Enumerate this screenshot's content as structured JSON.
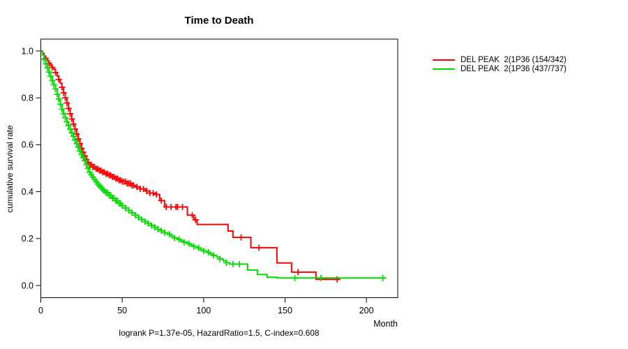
{
  "title": "Time to Death",
  "axes": {
    "ylabel": "cumulative survival rate",
    "xlabel": "Month"
  },
  "footer": "logrank P=1.37e-05, HazardRatio=1.5, C-index=0.608",
  "legend": {
    "position": "right",
    "items": [
      {
        "label": "DEL PEAK  2(1P36 (154/342)",
        "color": "#FF0000"
      },
      {
        "label": "DEL PEAK  2(1P36 (437/737)",
        "color": "#00DC00"
      }
    ]
  },
  "chart_data": {
    "type": "line",
    "subtype": "kaplan-meier-step-survival",
    "title": "Time to Death",
    "xlabel": "Month",
    "ylabel": "cumulative survival rate",
    "annotation": "logrank P=1.37e-05, HazardRatio=1.5, C-index=0.608",
    "x_ticks": [
      0,
      50,
      100,
      150,
      200
    ],
    "y_ticks": [
      0.0,
      0.2,
      0.4,
      0.6,
      0.8,
      1.0
    ],
    "xlim": [
      0,
      219
    ],
    "ylim": [
      0,
      1.04
    ],
    "grid": false,
    "legend_position": "right",
    "series": [
      {
        "name": "DEL PEAK  2(1P36 (154/342)",
        "color": "#FF0000",
        "end_t": 184,
        "steps": [
          [
            0,
            1.0
          ],
          [
            1,
            0.99
          ],
          [
            2,
            0.978
          ],
          [
            3,
            0.968
          ],
          [
            4,
            0.958
          ],
          [
            5,
            0.948
          ],
          [
            6,
            0.938
          ],
          [
            7,
            0.93
          ],
          [
            8,
            0.922
          ],
          [
            9,
            0.908
          ],
          [
            10,
            0.893
          ],
          [
            11,
            0.878
          ],
          [
            12,
            0.862
          ],
          [
            13,
            0.845
          ],
          [
            14,
            0.822
          ],
          [
            15,
            0.8
          ],
          [
            16,
            0.778
          ],
          [
            17,
            0.755
          ],
          [
            18,
            0.732
          ],
          [
            19,
            0.71
          ],
          [
            20,
            0.688
          ],
          [
            21,
            0.667
          ],
          [
            22,
            0.646
          ],
          [
            23,
            0.625
          ],
          [
            24,
            0.605
          ],
          [
            25,
            0.585
          ],
          [
            26,
            0.568
          ],
          [
            27,
            0.552
          ],
          [
            28,
            0.537
          ],
          [
            29,
            0.523
          ],
          [
            30,
            0.515
          ],
          [
            32,
            0.505
          ],
          [
            34,
            0.497
          ],
          [
            36,
            0.49
          ],
          [
            38,
            0.483
          ],
          [
            40,
            0.476
          ],
          [
            42,
            0.47
          ],
          [
            44,
            0.463
          ],
          [
            46,
            0.456
          ],
          [
            48,
            0.449
          ],
          [
            50,
            0.443
          ],
          [
            53,
            0.435
          ],
          [
            56,
            0.427
          ],
          [
            58,
            0.42
          ],
          [
            61,
            0.412
          ],
          [
            64,
            0.403
          ],
          [
            67,
            0.394
          ],
          [
            70,
            0.388
          ],
          [
            73,
            0.362
          ],
          [
            76,
            0.335
          ],
          [
            90,
            0.3
          ],
          [
            94,
            0.28
          ],
          [
            96,
            0.26
          ],
          [
            115,
            0.232
          ],
          [
            118,
            0.205
          ],
          [
            129,
            0.161
          ],
          [
            145,
            0.096
          ],
          [
            154,
            0.057
          ],
          [
            169,
            0.026
          ]
        ],
        "censor_times": [
          3,
          5,
          7,
          9,
          11,
          13,
          14,
          15,
          16,
          17,
          18,
          19,
          20,
          21,
          22,
          23,
          24,
          25,
          26,
          27,
          28,
          29,
          30,
          31,
          32,
          33,
          34,
          35,
          36,
          37,
          38,
          39,
          40,
          41,
          42,
          43,
          44,
          45,
          46,
          47,
          48,
          49,
          50,
          51,
          52,
          53,
          54,
          55,
          56,
          57,
          59,
          61,
          63,
          65,
          67,
          69,
          71,
          74,
          77,
          80,
          83,
          84,
          87,
          93,
          95,
          123,
          134,
          158,
          182
        ]
      },
      {
        "name": "DEL PEAK  2(1P36 (437/737)",
        "color": "#00DC00",
        "end_t": 212,
        "steps": [
          [
            0,
            1.0
          ],
          [
            1,
            0.983
          ],
          [
            2,
            0.964
          ],
          [
            3,
            0.945
          ],
          [
            4,
            0.928
          ],
          [
            5,
            0.91
          ],
          [
            6,
            0.892
          ],
          [
            7,
            0.874
          ],
          [
            8,
            0.856
          ],
          [
            9,
            0.838
          ],
          [
            10,
            0.815
          ],
          [
            11,
            0.795
          ],
          [
            12,
            0.773
          ],
          [
            13,
            0.752
          ],
          [
            14,
            0.733
          ],
          [
            15,
            0.715
          ],
          [
            16,
            0.698
          ],
          [
            17,
            0.682
          ],
          [
            18,
            0.666
          ],
          [
            19,
            0.651
          ],
          [
            20,
            0.636
          ],
          [
            21,
            0.62
          ],
          [
            22,
            0.605
          ],
          [
            23,
            0.59
          ],
          [
            24,
            0.573
          ],
          [
            25,
            0.558
          ],
          [
            26,
            0.545
          ],
          [
            27,
            0.532
          ],
          [
            28,
            0.515
          ],
          [
            29,
            0.5
          ],
          [
            30,
            0.483
          ],
          [
            31,
            0.472
          ],
          [
            32,
            0.462
          ],
          [
            33,
            0.452
          ],
          [
            34,
            0.442
          ],
          [
            35,
            0.433
          ],
          [
            36,
            0.425
          ],
          [
            37,
            0.418
          ],
          [
            38,
            0.41
          ],
          [
            39,
            0.403
          ],
          [
            40,
            0.396
          ],
          [
            42,
            0.384
          ],
          [
            44,
            0.372
          ],
          [
            46,
            0.361
          ],
          [
            48,
            0.35
          ],
          [
            50,
            0.34
          ],
          [
            52,
            0.33
          ],
          [
            54,
            0.32
          ],
          [
            56,
            0.31
          ],
          [
            58,
            0.3
          ],
          [
            60,
            0.29
          ],
          [
            62,
            0.281
          ],
          [
            64,
            0.272
          ],
          [
            66,
            0.264
          ],
          [
            68,
            0.256
          ],
          [
            70,
            0.248
          ],
          [
            72,
            0.24
          ],
          [
            74,
            0.233
          ],
          [
            76,
            0.225
          ],
          [
            78,
            0.218
          ],
          [
            80,
            0.21
          ],
          [
            82,
            0.203
          ],
          [
            84,
            0.196
          ],
          [
            86,
            0.19
          ],
          [
            88,
            0.184
          ],
          [
            90,
            0.178
          ],
          [
            92,
            0.172
          ],
          [
            94,
            0.166
          ],
          [
            96,
            0.16
          ],
          [
            98,
            0.153
          ],
          [
            100,
            0.147
          ],
          [
            102,
            0.141
          ],
          [
            104,
            0.134
          ],
          [
            106,
            0.128
          ],
          [
            108,
            0.121
          ],
          [
            110,
            0.113
          ],
          [
            112,
            0.105
          ],
          [
            114,
            0.097
          ],
          [
            116,
            0.091
          ],
          [
            127,
            0.066
          ],
          [
            133,
            0.047
          ],
          [
            139,
            0.035
          ],
          [
            145,
            0.032
          ]
        ],
        "censor_times": [
          2,
          3,
          4,
          5,
          6,
          7,
          8,
          9,
          10,
          11,
          12,
          13,
          14,
          15,
          16,
          17,
          18,
          19,
          20,
          21,
          22,
          23,
          24,
          25,
          26,
          27,
          28,
          29,
          30,
          31,
          32,
          33,
          34,
          35,
          36,
          37,
          38,
          39,
          40,
          41,
          42,
          43,
          44,
          45,
          46,
          47,
          48,
          49,
          50,
          52,
          54,
          56,
          58,
          60,
          62,
          64,
          66,
          68,
          70,
          72,
          74,
          76,
          79,
          82,
          85,
          88,
          91,
          94,
          97,
          100,
          103,
          106,
          110,
          114,
          118,
          122,
          156,
          172,
          210
        ]
      }
    ]
  }
}
